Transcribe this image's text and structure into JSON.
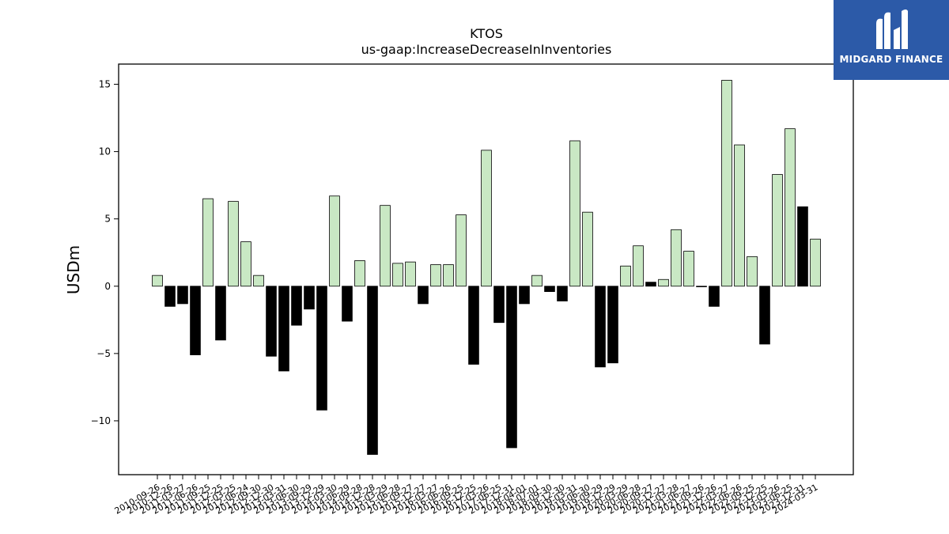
{
  "brand": {
    "name": "MIDGARD FINANCE",
    "bg_color": "#2c5aa8"
  },
  "chart_data": {
    "type": "bar",
    "title": "KTOS",
    "subtitle": "us-gaap:IncreaseDecreaseInInventories",
    "xlabel": "",
    "ylabel": "USDm",
    "ylim": [
      -14,
      16.5
    ],
    "yticks": [
      -10,
      -5,
      0,
      5,
      10,
      15
    ],
    "grid": false,
    "colors": {
      "positive": "#c9e8c4",
      "negative": "#000000",
      "highlight": "#000000",
      "edge": "#000000"
    },
    "categories": [
      "2010-09-26",
      "2010-12-26",
      "2011-03-27",
      "2011-06-26",
      "2011-09-25",
      "2011-12-25",
      "2012-03-25",
      "2012-06-24",
      "2012-09-30",
      "2012-12-30",
      "2013-03-31",
      "2013-06-30",
      "2013-09-29",
      "2013-12-29",
      "2014-03-30",
      "2014-06-29",
      "2014-09-28",
      "2014-12-28",
      "2015-03-29",
      "2015-06-28",
      "2015-09-27",
      "2015-12-27",
      "2016-03-27",
      "2016-06-26",
      "2016-09-25",
      "2016-12-25",
      "2017-03-26",
      "2017-06-25",
      "2017-12-31",
      "2018-04-01",
      "2018-07-01",
      "2018-09-30",
      "2018-12-30",
      "2019-03-31",
      "2019-06-30",
      "2019-09-29",
      "2019-12-29",
      "2020-03-29",
      "2020-06-28",
      "2020-09-27",
      "2020-12-27",
      "2021-03-28",
      "2021-06-27",
      "2021-09-26",
      "2021-12-26",
      "2022-03-27",
      "2022-06-26",
      "2022-09-25",
      "2022-12-25",
      "2023-03-26",
      "2023-06-25",
      "2023-12-31",
      "2024-03-31"
    ],
    "values": [
      0.8,
      -1.5,
      -1.3,
      -5.1,
      6.5,
      -4.0,
      6.3,
      3.3,
      0.8,
      -5.2,
      -6.3,
      -2.9,
      -1.7,
      -9.2,
      6.7,
      -2.6,
      1.9,
      -12.5,
      6.0,
      1.7,
      1.8,
      -1.3,
      1.6,
      1.6,
      5.3,
      -5.8,
      10.1,
      -2.7,
      -12.0,
      -1.3,
      0.8,
      -0.4,
      -1.1,
      10.8,
      5.5,
      -6.0,
      -5.7,
      1.5,
      3.0,
      0.3,
      0.5,
      4.2,
      2.6,
      0.0,
      -1.5,
      15.3,
      10.5,
      2.2,
      -4.3,
      8.3,
      11.7,
      5.9,
      3.5
    ],
    "highlight_categories": [
      "2020-09-27",
      "2023-12-31"
    ]
  }
}
